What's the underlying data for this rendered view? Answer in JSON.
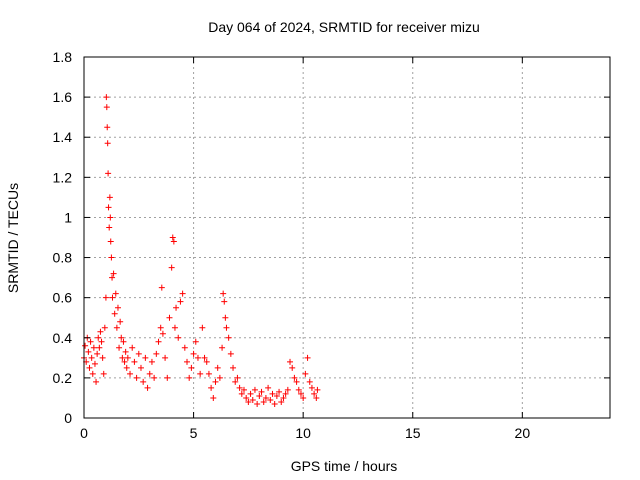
{
  "chart_data": {
    "type": "scatter",
    "title": "Day 064 of 2024, SRMTID for receiver mizu",
    "xlabel": "GPS time / hours",
    "ylabel": "SRMTID / TECUs",
    "xlim": [
      0,
      24
    ],
    "ylim": [
      0,
      1.8
    ],
    "xticks": [
      0,
      5,
      10,
      15,
      20
    ],
    "yticks": [
      0,
      0.2,
      0.4,
      0.6,
      0.8,
      1,
      1.2,
      1.4,
      1.6,
      1.8
    ],
    "xtick_labels": [
      "0",
      "5",
      "10",
      "15",
      "20"
    ],
    "ytick_labels": [
      "0",
      "0.2",
      "0.4",
      "0.6",
      "0.8",
      "1",
      "1.2",
      "1.4",
      "1.6",
      "1.8"
    ],
    "grid": true,
    "marker": "+",
    "color": "#ff0000",
    "series": [
      {
        "name": "SRMTID",
        "points": [
          [
            0.0,
            0.3
          ],
          [
            0.05,
            0.36
          ],
          [
            0.1,
            0.28
          ],
          [
            0.15,
            0.4
          ],
          [
            0.2,
            0.33
          ],
          [
            0.25,
            0.25
          ],
          [
            0.3,
            0.38
          ],
          [
            0.35,
            0.3
          ],
          [
            0.4,
            0.22
          ],
          [
            0.45,
            0.35
          ],
          [
            0.5,
            0.27
          ],
          [
            0.55,
            0.18
          ],
          [
            0.6,
            0.32
          ],
          [
            0.65,
            0.4
          ],
          [
            0.7,
            0.35
          ],
          [
            0.75,
            0.43
          ],
          [
            0.8,
            0.38
          ],
          [
            0.85,
            0.3
          ],
          [
            0.9,
            0.22
          ],
          [
            0.95,
            0.45
          ],
          [
            1.0,
            0.6
          ],
          [
            1.02,
            1.6
          ],
          [
            1.04,
            1.55
          ],
          [
            1.06,
            1.45
          ],
          [
            1.08,
            1.37
          ],
          [
            1.1,
            1.22
          ],
          [
            1.12,
            1.05
          ],
          [
            1.15,
            0.95
          ],
          [
            1.18,
            1.1
          ],
          [
            1.2,
            1.0
          ],
          [
            1.22,
            0.88
          ],
          [
            1.25,
            0.8
          ],
          [
            1.28,
            0.7
          ],
          [
            1.3,
            0.6
          ],
          [
            1.35,
            0.72
          ],
          [
            1.4,
            0.52
          ],
          [
            1.45,
            0.62
          ],
          [
            1.5,
            0.45
          ],
          [
            1.55,
            0.55
          ],
          [
            1.6,
            0.35
          ],
          [
            1.65,
            0.48
          ],
          [
            1.7,
            0.4
          ],
          [
            1.75,
            0.3
          ],
          [
            1.8,
            0.38
          ],
          [
            1.85,
            0.28
          ],
          [
            1.9,
            0.33
          ],
          [
            1.95,
            0.25
          ],
          [
            2.0,
            0.3
          ],
          [
            2.1,
            0.22
          ],
          [
            2.2,
            0.35
          ],
          [
            2.3,
            0.28
          ],
          [
            2.4,
            0.2
          ],
          [
            2.5,
            0.32
          ],
          [
            2.6,
            0.25
          ],
          [
            2.7,
            0.18
          ],
          [
            2.8,
            0.3
          ],
          [
            2.9,
            0.15
          ],
          [
            3.0,
            0.22
          ],
          [
            3.1,
            0.28
          ],
          [
            3.2,
            0.2
          ],
          [
            3.3,
            0.32
          ],
          [
            3.4,
            0.38
          ],
          [
            3.5,
            0.45
          ],
          [
            3.55,
            0.65
          ],
          [
            3.6,
            0.42
          ],
          [
            3.7,
            0.3
          ],
          [
            3.8,
            0.2
          ],
          [
            3.9,
            0.5
          ],
          [
            4.0,
            0.75
          ],
          [
            4.05,
            0.9
          ],
          [
            4.1,
            0.88
          ],
          [
            4.15,
            0.45
          ],
          [
            4.2,
            0.55
          ],
          [
            4.3,
            0.4
          ],
          [
            4.4,
            0.58
          ],
          [
            4.5,
            0.62
          ],
          [
            4.6,
            0.35
          ],
          [
            4.7,
            0.28
          ],
          [
            4.8,
            0.2
          ],
          [
            4.9,
            0.25
          ],
          [
            5.0,
            0.32
          ],
          [
            5.1,
            0.38
          ],
          [
            5.2,
            0.3
          ],
          [
            5.3,
            0.22
          ],
          [
            5.4,
            0.45
          ],
          [
            5.5,
            0.3
          ],
          [
            5.6,
            0.28
          ],
          [
            5.7,
            0.22
          ],
          [
            5.8,
            0.15
          ],
          [
            5.9,
            0.1
          ],
          [
            6.0,
            0.18
          ],
          [
            6.1,
            0.25
          ],
          [
            6.2,
            0.2
          ],
          [
            6.3,
            0.35
          ],
          [
            6.35,
            0.62
          ],
          [
            6.4,
            0.58
          ],
          [
            6.45,
            0.5
          ],
          [
            6.5,
            0.45
          ],
          [
            6.6,
            0.4
          ],
          [
            6.7,
            0.32
          ],
          [
            6.8,
            0.25
          ],
          [
            6.9,
            0.18
          ],
          [
            7.0,
            0.2
          ],
          [
            7.1,
            0.15
          ],
          [
            7.2,
            0.12
          ],
          [
            7.3,
            0.14
          ],
          [
            7.4,
            0.1
          ],
          [
            7.5,
            0.08
          ],
          [
            7.6,
            0.12
          ],
          [
            7.7,
            0.09
          ],
          [
            7.8,
            0.14
          ],
          [
            7.9,
            0.07
          ],
          [
            8.0,
            0.11
          ],
          [
            8.1,
            0.13
          ],
          [
            8.2,
            0.08
          ],
          [
            8.3,
            0.1
          ],
          [
            8.4,
            0.15
          ],
          [
            8.5,
            0.09
          ],
          [
            8.6,
            0.12
          ],
          [
            8.7,
            0.07
          ],
          [
            8.8,
            0.11
          ],
          [
            8.9,
            0.13
          ],
          [
            9.0,
            0.08
          ],
          [
            9.1,
            0.1
          ],
          [
            9.2,
            0.12
          ],
          [
            9.3,
            0.14
          ],
          [
            9.4,
            0.28
          ],
          [
            9.5,
            0.25
          ],
          [
            9.6,
            0.2
          ],
          [
            9.7,
            0.18
          ],
          [
            9.8,
            0.14
          ],
          [
            9.9,
            0.12
          ],
          [
            10.0,
            0.1
          ],
          [
            10.1,
            0.22
          ],
          [
            10.2,
            0.3
          ],
          [
            10.3,
            0.18
          ],
          [
            10.4,
            0.15
          ],
          [
            10.5,
            0.12
          ],
          [
            10.6,
            0.1
          ],
          [
            10.65,
            0.14
          ]
        ]
      }
    ]
  }
}
